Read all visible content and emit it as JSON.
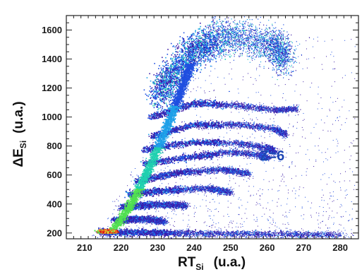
{
  "chart_data": {
    "type": "heatmap",
    "xlabel": {
      "main": "RT",
      "sub": "Si",
      "unit": "(u.a.)"
    },
    "ylabel": {
      "main": "ΔE",
      "sub": "Si",
      "unit": "(u.a.)"
    },
    "xlim": [
      205,
      285
    ],
    "ylim": [
      160,
      1700
    ],
    "x_ticks": [
      210,
      220,
      230,
      240,
      250,
      260,
      270,
      280
    ],
    "y_ticks": [
      200,
      400,
      600,
      800,
      1000,
      1200,
      1400,
      1600
    ],
    "x_minor_step": 2,
    "y_minor_step": 50,
    "grid": false,
    "colormap": [
      "#3a1aa6",
      "#1f4fe0",
      "#1fa0e8",
      "#20d0b0",
      "#50e050",
      "#f0e030",
      "#f07a20",
      "#d81818"
    ],
    "annotation": {
      "text": "Z=6",
      "x": 258,
      "y": 700,
      "color": "#1e46b4"
    },
    "ridges": [
      {
        "x": [
          230,
          240,
          250,
          262,
          265
        ],
        "y": [
          1160,
          1480,
          1560,
          1500,
          1400
        ]
      },
      {
        "x": [
          228,
          240,
          252,
          262,
          268
        ],
        "y": [
          1000,
          1100,
          1080,
          1050,
          1060
        ]
      },
      {
        "x": [
          228,
          240,
          252,
          262,
          265
        ],
        "y": [
          870,
          950,
          950,
          920,
          880
        ]
      },
      {
        "x": [
          226,
          240,
          252,
          260,
          262
        ],
        "y": [
          780,
          830,
          820,
          790,
          760
        ]
      },
      {
        "x": [
          226,
          240,
          250,
          258,
          260
        ],
        "y": [
          680,
          730,
          760,
          740,
          720
        ]
      },
      {
        "x": [
          224,
          236,
          248,
          255
        ],
        "y": [
          560,
          620,
          640,
          610
        ]
      },
      {
        "x": [
          222,
          234,
          244,
          250
        ],
        "y": [
          470,
          500,
          510,
          480
        ]
      },
      {
        "x": [
          220,
          230,
          238
        ],
        "y": [
          380,
          400,
          390
        ]
      },
      {
        "x": [
          218,
          226,
          232
        ],
        "y": [
          290,
          300,
          280
        ]
      },
      {
        "x": [
          214,
          240,
          280
        ],
        "y": [
          210,
          200,
          190
        ]
      }
    ]
  }
}
